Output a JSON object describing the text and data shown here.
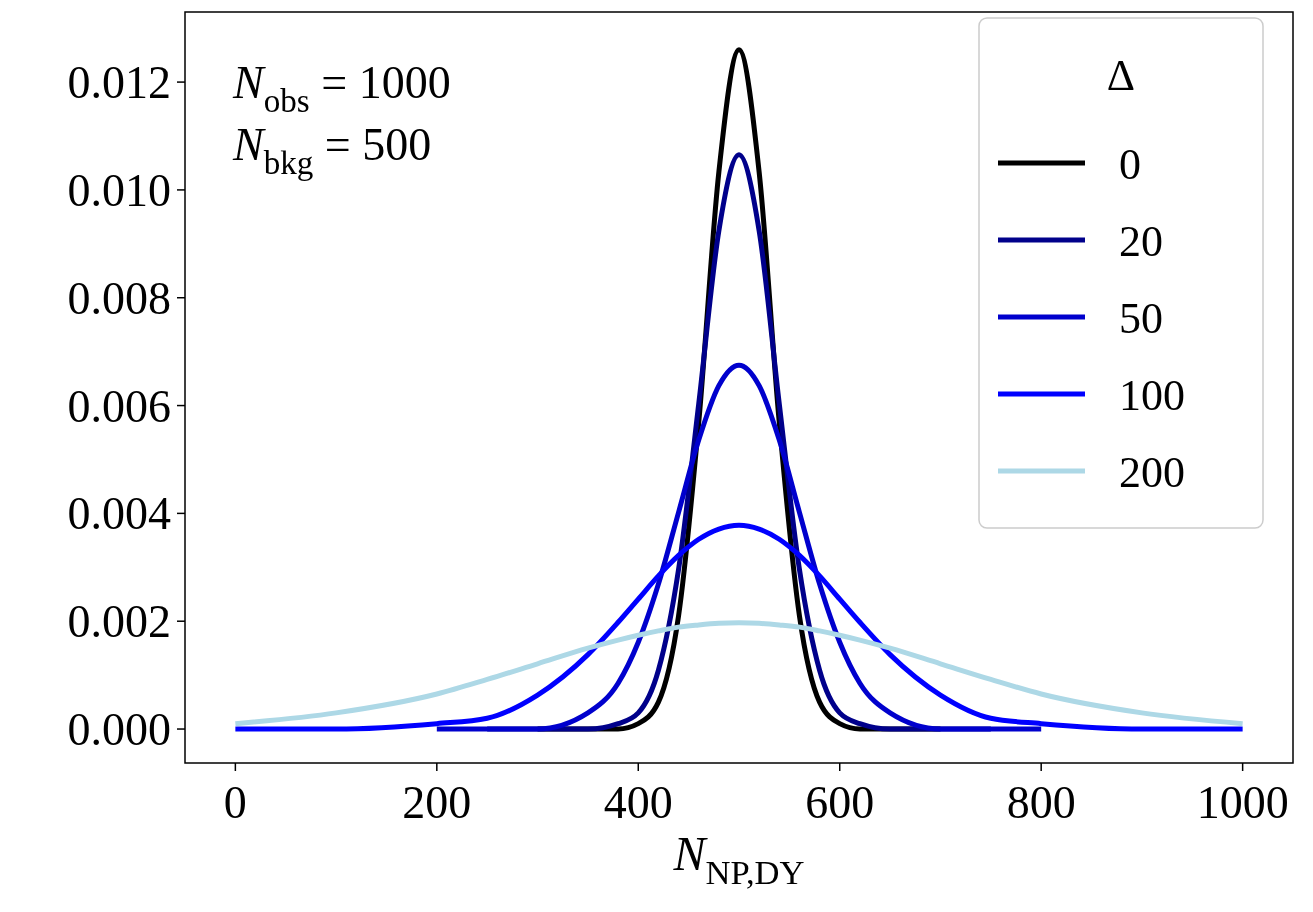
{
  "chart_data": {
    "type": "line",
    "xlabel": "N$_{NP,DY}$",
    "legend_title": "Δ",
    "legend": "top right",
    "grid": false,
    "annotations": [
      "N$_{obs}$ = 1000",
      "N$_{bkg}$ = 500"
    ],
    "x": [
      0,
      100,
      200,
      250,
      300,
      350,
      380,
      400,
      420,
      440,
      460,
      480,
      500,
      520,
      540,
      560,
      580,
      600,
      620,
      650,
      700,
      750,
      800,
      900,
      1000
    ],
    "xlim": [
      -50,
      1050
    ],
    "xticks": [
      0,
      200,
      400,
      600,
      800,
      1000
    ],
    "ylim": [
      -0.00063,
      0.0133
    ],
    "yticks": [
      {
        "value": 0,
        "label": "0.000"
      },
      {
        "value": 0.002,
        "label": "0.002"
      },
      {
        "value": 0.004,
        "label": "0.004"
      },
      {
        "value": 0.006,
        "label": "0.006"
      },
      {
        "value": 0.008,
        "label": "0.008"
      },
      {
        "value": 0.01,
        "label": "0.010"
      },
      {
        "value": 0.012,
        "label": "0.012"
      }
    ],
    "series": [
      {
        "name": "0",
        "color": "#000000",
        "values": [
          null,
          null,
          null,
          null,
          0,
          0,
          0,
          0.0001,
          0.0005,
          0.0021,
          0.00568,
          0.01033,
          0.0126,
          0.01033,
          0.00568,
          0.0021,
          0.0005,
          0.0001,
          0,
          0,
          0,
          null,
          null,
          null,
          null
        ]
      },
      {
        "name": "20",
        "color": "#00008b",
        "values": [
          null,
          null,
          null,
          0,
          0,
          0,
          0.0001,
          0.0003,
          0.00109,
          0.00296,
          0.00603,
          0.00924,
          0.01065,
          0.00924,
          0.00603,
          0.00296,
          0.00109,
          0.0003,
          0.0001,
          0,
          0,
          0,
          null,
          null,
          null
        ]
      },
      {
        "name": "50",
        "color": "#0000cd",
        "values": [
          null,
          null,
          0,
          0,
          0,
          0.0003,
          0.00085,
          0.00161,
          0.00269,
          0.00402,
          0.00536,
          0.00637,
          0.00675,
          0.00637,
          0.00536,
          0.00402,
          0.00269,
          0.00161,
          0.00085,
          0.0003,
          0,
          0,
          0,
          null,
          null
        ]
      },
      {
        "name": "100",
        "color": "#0000ff",
        "values": [
          0,
          0,
          0.0001,
          0.0002,
          0.00063,
          0.00138,
          0.00198,
          0.00241,
          0.00284,
          0.00322,
          0.00352,
          0.00371,
          0.00378,
          0.00371,
          0.00352,
          0.00322,
          0.00284,
          0.00241,
          0.00198,
          0.00138,
          0.00063,
          0.0002,
          0.0001,
          0,
          0
        ]
      },
      {
        "name": "200",
        "color": "#add8e6",
        "values": [
          0.0001,
          0.0003,
          0.00065,
          0.00092,
          0.00121,
          0.0015,
          0.00165,
          0.00174,
          0.00182,
          0.00189,
          0.00193,
          0.00196,
          0.00197,
          0.00196,
          0.00193,
          0.00189,
          0.00182,
          0.00174,
          0.00165,
          0.0015,
          0.00121,
          0.00092,
          0.00065,
          0.0003,
          0.0001
        ]
      }
    ]
  }
}
